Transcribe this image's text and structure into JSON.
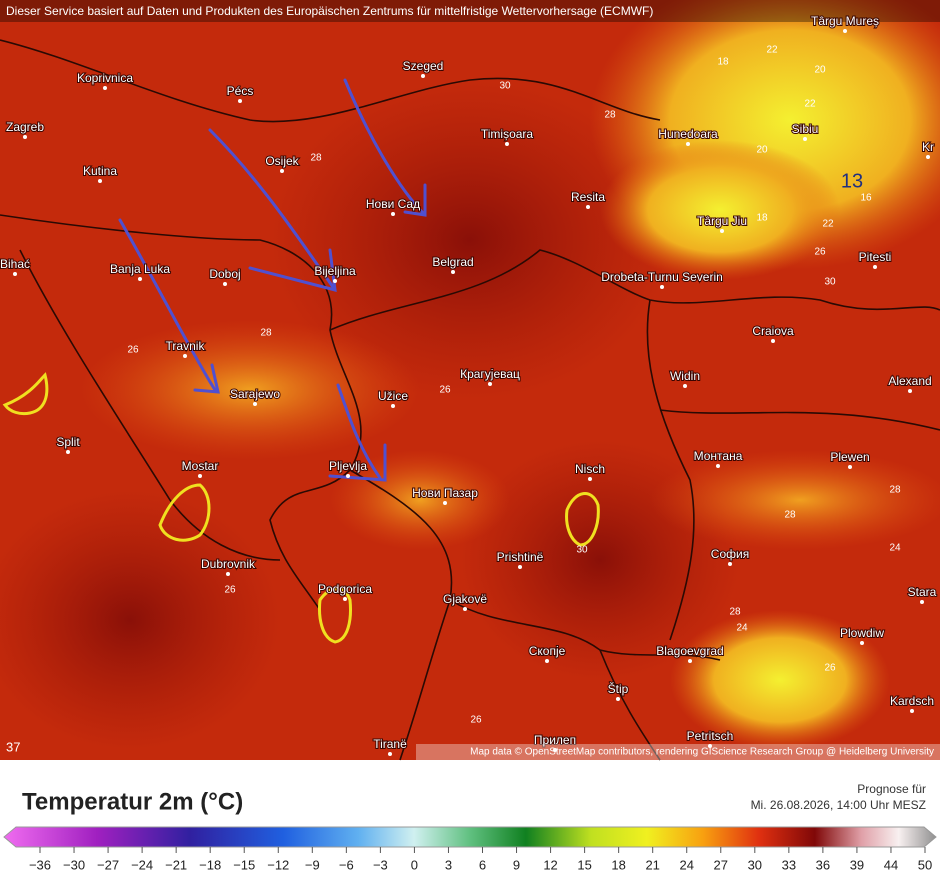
{
  "header": {
    "attribution": "Dieser Service basiert auf Daten und Produkten des Europäischen Zentrums für mittelfristige Wettervorhersage (ECMWF)"
  },
  "map": {
    "places": [
      "Koprivnica",
      "Pécs",
      "Szeged",
      "Târgu Mureș",
      "Zagreb",
      "Osijek",
      "Timișoara",
      "Hunedoara",
      "Sibiu",
      "Kr",
      "Kutina",
      "Нови Сад",
      "Resita",
      "Târgu Jiu",
      "Pitesti",
      "Bihać",
      "Banja Luka",
      "Doboj",
      "Bijeljina",
      "Belgrad",
      "Drobeta-Turnu Severin",
      "Craiova",
      "Travnik",
      "Крагујевац",
      "Widin",
      "Alexand",
      "Sarajewo",
      "Užice",
      "Split",
      "Монтана",
      "Plewen",
      "Mostar",
      "Pljevlja",
      "Nisch",
      "Нови Пазар",
      "Dubrovnik",
      "Prishtinë",
      "София",
      "Stara",
      "Podgorica",
      "Gjakovë",
      "Plowdiw",
      "Скопје",
      "Blagoevgrad",
      "Štip",
      "Kardsch",
      "Petritsch",
      "Tiranë",
      "Прилеп"
    ],
    "contour_labels": [
      "18",
      "22",
      "20",
      "22",
      "20",
      "16",
      "18",
      "22",
      "26",
      "28",
      "30",
      "26",
      "28",
      "26",
      "28",
      "30",
      "28",
      "24",
      "26",
      "24",
      "28",
      "26",
      "30",
      "28",
      "26"
    ],
    "corner_value": "37",
    "annotation": "13",
    "credit": "Map data © OpenStreetMap contributors, rendering GIScience Research Group @ Heidelberg University"
  },
  "legend": {
    "title": "Temperatur 2m (°C)",
    "forecast_label": "Prognose für",
    "forecast_time": "Mi. 26.08.2026, 14:00 Uhr MESZ",
    "ticks": [
      "−36",
      "−30",
      "−27",
      "−24",
      "−21",
      "−18",
      "−15",
      "−12",
      "−9",
      "−6",
      "−3",
      "0",
      "3",
      "6",
      "9",
      "12",
      "15",
      "18",
      "21",
      "24",
      "27",
      "30",
      "33",
      "36",
      "39",
      "44",
      "50"
    ]
  }
}
